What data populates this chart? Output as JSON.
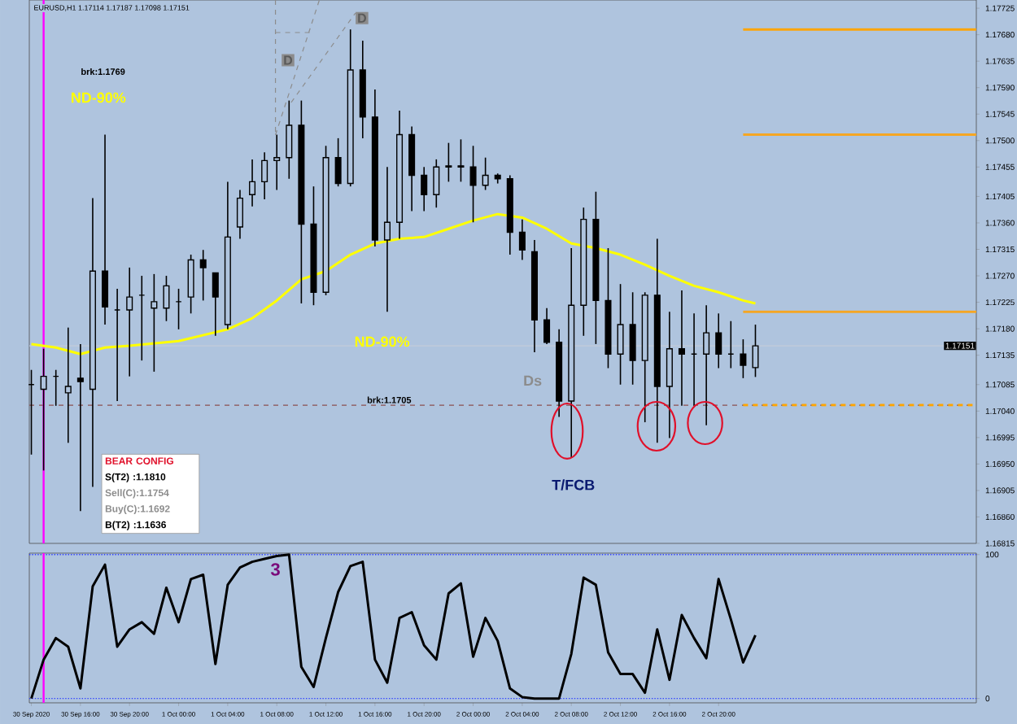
{
  "chart_data": [
    {
      "type": "candlestick",
      "title": "EURUSD,H1 1.17114 1.17187 1.17098 1.17151",
      "color": "#000000",
      "x": [
        "2020-09-30T12:00",
        "2020-09-30T13:00",
        "2020-09-30T14:00",
        "2020-09-30T15:00",
        "2020-09-30T16:00",
        "2020-09-30T17:00",
        "2020-09-30T18:00",
        "2020-09-30T19:00",
        "2020-09-30T20:00",
        "2020-09-30T21:00",
        "2020-09-30T22:00",
        "2020-09-30T23:00",
        "2020-10-01T00:00",
        "2020-10-01T01:00",
        "2020-10-01T02:00",
        "2020-10-01T03:00",
        "2020-10-01T04:00",
        "2020-10-01T05:00",
        "2020-10-01T06:00",
        "2020-10-01T07:00",
        "2020-10-01T08:00",
        "2020-10-01T09:00",
        "2020-10-01T10:00",
        "2020-10-01T11:00",
        "2020-10-01T12:00",
        "2020-10-01T13:00",
        "2020-10-01T14:00",
        "2020-10-01T15:00",
        "2020-10-01T16:00",
        "2020-10-01T17:00",
        "2020-10-01T18:00",
        "2020-10-01T19:00",
        "2020-10-01T20:00",
        "2020-10-01T21:00",
        "2020-10-01T22:00",
        "2020-10-01T23:00",
        "2020-10-02T00:00",
        "2020-10-02T01:00",
        "2020-10-02T02:00",
        "2020-10-02T03:00",
        "2020-10-02T04:00",
        "2020-10-02T05:00",
        "2020-10-02T06:00",
        "2020-10-02T07:00",
        "2020-10-02T08:00",
        "2020-10-02T09:00",
        "2020-10-02T10:00",
        "2020-10-02T11:00",
        "2020-10-02T12:00",
        "2020-10-02T13:00",
        "2020-10-02T14:00",
        "2020-10-02T15:00",
        "2020-10-02T16:00",
        "2020-10-02T17:00",
        "2020-10-02T18:00",
        "2020-10-02T19:00",
        "2020-10-02T20:00",
        "2020-10-02T21:00",
        "2020-10-02T22:00",
        "2020-10-02T23:00"
      ],
      "ohlc": [
        [
          1.17085,
          1.1711,
          1.16966,
          1.17085
        ],
        [
          1.17077,
          1.17146,
          1.16939,
          1.17099
        ],
        [
          1.17099,
          1.1711,
          1.17049,
          1.17099
        ],
        [
          1.17071,
          1.17182,
          1.16986,
          1.17082
        ],
        [
          1.17096,
          1.17154,
          1.1687,
          1.1709
        ],
        [
          1.17077,
          1.17402,
          1.16911,
          1.17278
        ],
        [
          1.17278,
          1.1751,
          1.17187,
          1.17217
        ],
        [
          1.17212,
          1.17248,
          1.17057,
          1.17212
        ],
        [
          1.17212,
          1.17284,
          1.17099,
          1.17234
        ],
        [
          1.17237,
          1.1727,
          1.17126,
          1.17237
        ],
        [
          1.17215,
          1.17273,
          1.17107,
          1.17226
        ],
        [
          1.17215,
          1.1727,
          1.17193,
          1.17253
        ],
        [
          1.17226,
          1.17248,
          1.17179,
          1.17226
        ],
        [
          1.17234,
          1.17306,
          1.17206,
          1.17297
        ],
        [
          1.17297,
          1.17314,
          1.17228,
          1.17284
        ],
        [
          1.17275,
          1.17275,
          1.17168,
          1.17234
        ],
        [
          1.17187,
          1.1743,
          1.17179,
          1.17336
        ],
        [
          1.17353,
          1.17416,
          1.17333,
          1.17402
        ],
        [
          1.17408,
          1.17468,
          1.17388,
          1.1743
        ],
        [
          1.1743,
          1.1748,
          1.174,
          1.17466
        ],
        [
          1.17466,
          1.1751,
          1.17416,
          1.17471
        ],
        [
          1.17471,
          1.17568,
          1.17435,
          1.17526
        ],
        [
          1.17526,
          1.17568,
          1.17223,
          1.17358
        ],
        [
          1.17358,
          1.17422,
          1.1722,
          1.17242
        ],
        [
          1.17242,
          1.17491,
          1.17237,
          1.17471
        ],
        [
          1.17471,
          1.17504,
          1.17422,
          1.17427
        ],
        [
          1.17427,
          1.17689,
          1.17422,
          1.1762
        ],
        [
          1.1762,
          1.1767,
          1.17504,
          1.1754
        ],
        [
          1.1754,
          1.17587,
          1.1732,
          1.17331
        ],
        [
          1.17331,
          1.17455,
          1.17209,
          1.17361
        ],
        [
          1.17361,
          1.17551,
          1.17333,
          1.1751
        ],
        [
          1.1751,
          1.17524,
          1.1738,
          1.17441
        ],
        [
          1.17441,
          1.17455,
          1.1738,
          1.17408
        ],
        [
          1.17408,
          1.17468,
          1.17386,
          1.17455
        ],
        [
          1.17455,
          1.17496,
          1.1743,
          1.17457
        ],
        [
          1.17457,
          1.17502,
          1.1743,
          1.17455
        ],
        [
          1.17455,
          1.17491,
          1.17361,
          1.17424
        ],
        [
          1.17424,
          1.17471,
          1.17416,
          1.17441
        ],
        [
          1.17441,
          1.17444,
          1.17427,
          1.17435
        ],
        [
          1.17435,
          1.17441,
          1.17306,
          1.17344
        ],
        [
          1.17344,
          1.17366,
          1.17297,
          1.17314
        ],
        [
          1.17311,
          1.17331,
          1.1714,
          1.17195
        ],
        [
          1.17195,
          1.17215,
          1.17154,
          1.17157
        ],
        [
          1.17157,
          1.17179,
          1.1703,
          1.17057
        ],
        [
          1.17057,
          1.17317,
          1.16961,
          1.1722
        ],
        [
          1.1722,
          1.17386,
          1.17168,
          1.17366
        ],
        [
          1.17366,
          1.17413,
          1.17154,
          1.17228
        ],
        [
          1.17228,
          1.17317,
          1.17113,
          1.17137
        ],
        [
          1.17137,
          1.17256,
          1.17085,
          1.17187
        ],
        [
          1.17187,
          1.17242,
          1.17085,
          1.17126
        ],
        [
          1.17126,
          1.17242,
          1.17021,
          1.17237
        ],
        [
          1.17237,
          1.17333,
          1.16986,
          1.17082
        ],
        [
          1.17082,
          1.17209,
          1.16994,
          1.17146
        ],
        [
          1.17146,
          1.17245,
          1.17049,
          1.17137
        ],
        [
          1.17137,
          1.17206,
          1.17049,
          1.17137
        ],
        [
          1.17137,
          1.1722,
          1.17016,
          1.17173
        ],
        [
          1.17173,
          1.17206,
          1.17113,
          1.17137
        ],
        [
          1.17137,
          1.17193,
          1.17113,
          1.17137
        ],
        [
          1.17137,
          1.17162,
          1.17096,
          1.17118
        ],
        [
          1.17114,
          1.17187,
          1.17098,
          1.17151
        ]
      ],
      "series": [
        {
          "type": "line",
          "color": "#ffff00",
          "x": [
            "2020-09-30T12:00",
            "2020-09-30T14:00",
            "2020-09-30T16:00",
            "2020-09-30T18:00",
            "2020-09-30T20:00",
            "2020-10-01T00:00",
            "2020-10-01T04:00",
            "2020-10-01T06:00",
            "2020-10-01T08:00",
            "2020-10-01T10:00",
            "2020-10-01T12:00",
            "2020-10-01T14:00",
            "2020-10-01T16:00",
            "2020-10-01T18:00",
            "2020-10-01T20:00",
            "2020-10-01T22:00",
            "2020-10-02T00:00",
            "2020-10-02T02:00",
            "2020-10-02T04:00",
            "2020-10-02T06:00",
            "2020-10-02T08:00",
            "2020-10-02T10:00",
            "2020-10-02T12:00",
            "2020-10-02T14:00",
            "2020-10-02T16:00",
            "2020-10-02T18:00",
            "2020-10-02T20:00",
            "2020-10-02T22:00",
            "2020-10-02T23:00"
          ],
          "values": [
            1.17154,
            1.17148,
            1.17137,
            1.17148,
            1.17151,
            1.17159,
            1.17179,
            1.17198,
            1.17228,
            1.17264,
            1.17278,
            1.17306,
            1.17325,
            1.17333,
            1.17336,
            1.1735,
            1.17364,
            1.17375,
            1.17369,
            1.1735,
            1.17325,
            1.17317,
            1.17306,
            1.17289,
            1.1727,
            1.17253,
            1.17242,
            1.17228,
            1.17223
          ]
        },
        {
          "type": "line",
          "color": "#ffa500",
          "x": [
            "2020-10-02T22:00",
            "2020-10-03T17:00"
          ],
          "values": [
            1.17689,
            1.17689
          ]
        },
        {
          "type": "line",
          "color": "#f5a623",
          "x": [
            "2020-10-02T22:00",
            "2020-10-03T17:00"
          ],
          "values": [
            1.1751,
            1.1751
          ]
        },
        {
          "type": "line",
          "color": "#f5a623",
          "x": [
            "2020-10-02T22:00",
            "2020-10-03T17:00"
          ],
          "values": [
            1.17209,
            1.17209
          ]
        },
        {
          "type": "line",
          "color": "#ffa500",
          "line_style": "dashed",
          "x": [
            "2020-10-02T22:00",
            "2020-10-03T17:00"
          ],
          "values": [
            1.1705,
            1.1705
          ]
        }
      ],
      "xlim": [
        "2020-09-30T11:50",
        "2020-10-03T17:00"
      ],
      "ylim": [
        1.16815,
        1.17739
      ],
      "yticks": [
        1.16815,
        {
          "value": 1.1686,
          "label": "1.16860"
        },
        1.16905,
        {
          "value": 1.1695,
          "label": "1.16950"
        },
        1.16995,
        {
          "value": 1.1704,
          "label": "1.17040"
        },
        1.17085,
        1.17135,
        {
          "value": 1.1718,
          "label": "1.17180"
        },
        1.17225,
        {
          "value": 1.1727,
          "label": "1.17270"
        },
        1.17315,
        {
          "value": 1.1736,
          "label": "1.17360"
        },
        1.17405,
        1.17455,
        {
          "value": 1.175,
          "label": "1.17500"
        },
        1.17545,
        {
          "value": 1.1759,
          "label": "1.17590"
        },
        1.17635,
        {
          "value": 1.1768,
          "label": "1.17680"
        },
        1.17725
      ],
      "ref_lines": [
        {
          "axis": "y",
          "value": 1.1705,
          "label": "brk:1.1705",
          "color": "#8c5050",
          "line_style": "dashed"
        },
        {
          "axis": "y",
          "value": 1.17151,
          "label": "1.17151",
          "color": "#c4ccd8"
        },
        {
          "axis": "x",
          "value": "2020-09-30T13:00",
          "color": "#ff00ff"
        }
      ],
      "annotations": [
        "brk:1.1769",
        "ND-90%",
        "ND-90%",
        "D",
        {
          "text": "D",
          "x": "2020-10-01T14:00",
          "y": 1.17689
        },
        "Ds",
        "T/FCB",
        "BEAR CONFIG",
        "S(T2) :1.1810",
        "Sell(C):1.1754",
        "Buy(C):1.1692",
        "B(T2) :1.1636"
      ],
      "tick_labels": "y"
    },
    {
      "type": "line",
      "color": "#000000",
      "x": [
        "2020-09-30T12:00",
        "2020-09-30T13:00",
        "2020-09-30T14:00",
        "2020-09-30T15:00",
        "2020-09-30T16:00",
        "2020-09-30T17:00",
        "2020-09-30T18:00",
        "2020-09-30T19:00",
        "2020-09-30T20:00",
        "2020-09-30T21:00",
        "2020-09-30T22:00",
        "2020-09-30T23:00",
        "2020-10-01T00:00",
        "2020-10-01T01:00",
        "2020-10-01T02:00",
        "2020-10-01T03:00",
        "2020-10-01T04:00",
        "2020-10-01T05:00",
        "2020-10-01T06:00",
        "2020-10-01T07:00",
        "2020-10-01T08:00",
        "2020-10-01T09:00",
        "2020-10-01T10:00",
        "2020-10-01T11:00",
        "2020-10-01T12:00",
        "2020-10-01T13:00",
        "2020-10-01T14:00",
        "2020-10-01T15:00",
        "2020-10-01T16:00",
        "2020-10-01T17:00",
        "2020-10-01T18:00",
        "2020-10-01T19:00",
        "2020-10-01T20:00",
        "2020-10-01T21:00",
        "2020-10-01T22:00",
        "2020-10-01T23:00",
        "2020-10-02T00:00",
        "2020-10-02T01:00",
        "2020-10-02T02:00",
        "2020-10-02T03:00",
        "2020-10-02T04:00",
        "2020-10-02T05:00",
        "2020-10-02T06:00",
        "2020-10-02T07:00",
        "2020-10-02T08:00",
        "2020-10-02T09:00",
        "2020-10-02T10:00",
        "2020-10-02T11:00",
        "2020-10-02T12:00",
        "2020-10-02T13:00",
        "2020-10-02T14:00",
        "2020-10-02T15:00",
        "2020-10-02T16:00",
        "2020-10-02T17:00",
        "2020-10-02T18:00",
        "2020-10-02T19:00",
        "2020-10-02T20:00",
        "2020-10-02T21:00",
        "2020-10-02T22:00",
        "2020-10-02T23:00"
      ],
      "values": [
        0,
        27,
        42,
        36,
        7,
        78,
        93,
        36,
        48,
        53,
        45,
        77,
        53,
        83,
        86,
        24,
        79,
        91,
        95,
        97,
        99,
        100,
        22,
        8,
        42,
        74,
        92,
        95,
        27,
        11,
        56,
        60,
        37,
        27,
        73,
        80,
        29,
        56,
        40,
        7,
        1,
        0,
        0,
        0,
        31,
        84,
        79,
        32,
        17,
        17,
        4,
        48,
        13,
        58,
        42,
        28,
        83,
        55,
        25,
        44
      ],
      "xlim": [
        "2020-09-30T11:50",
        "2020-10-03T17:00"
      ],
      "ylim": [
        -3,
        101
      ],
      "yticks": [
        0,
        100
      ],
      "xticks": [
        {
          "value": "2020-09-30T12:00",
          "label": "30 Sep 2020"
        },
        {
          "value": "2020-09-30T16:00",
          "label": "30 Sep 16:00"
        },
        {
          "value": "2020-09-30T20:00",
          "label": "30 Sep 20:00"
        },
        {
          "value": "2020-10-01T00:00",
          "label": "1 Oct 00:00"
        },
        {
          "value": "2020-10-01T04:00",
          "label": "1 Oct 04:00"
        },
        {
          "value": "2020-10-01T08:00",
          "label": "1 Oct 08:00"
        },
        {
          "value": "2020-10-01T12:00",
          "label": "1 Oct 12:00"
        },
        {
          "value": "2020-10-01T16:00",
          "label": "1 Oct 16:00"
        },
        {
          "value": "2020-10-01T20:00",
          "label": "1 Oct 20:00"
        },
        {
          "value": "2020-10-02T00:00",
          "label": "2 Oct 00:00"
        },
        {
          "value": "2020-10-02T04:00",
          "label": "2 Oct 04:00"
        },
        {
          "value": "2020-10-02T08:00",
          "label": "2 Oct 08:00"
        },
        {
          "value": "2020-10-02T12:00",
          "label": "2 Oct 12:00"
        },
        {
          "value": "2020-10-02T16:00",
          "label": "2 Oct 16:00"
        },
        {
          "value": "2020-10-02T20:00",
          "label": "2 Oct 20:00"
        }
      ],
      "ref_lines": [
        {
          "axis": "y",
          "value": 0,
          "color": "#3040ff",
          "line_style": "dotted"
        },
        {
          "axis": "y",
          "value": 100,
          "color": "#3040ff",
          "line_style": "dotted"
        },
        {
          "axis": "x",
          "value": "2020-09-30T13:00",
          "color": "#ff00ff"
        }
      ],
      "annotations": [
        "3"
      ]
    }
  ]
}
